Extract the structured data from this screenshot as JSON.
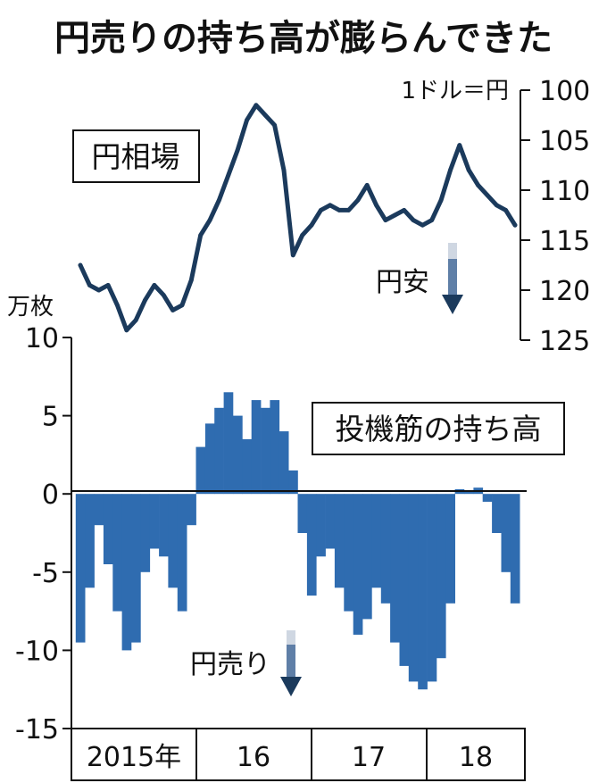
{
  "title": "円売りの持ち高が膨らんできた",
  "chart_data": [
    {
      "type": "line",
      "name": "円相場",
      "label": "円相場",
      "unit_label": "1ドル＝円",
      "y_reversed": true,
      "ylim": [
        100,
        125
      ],
      "yticks": [
        "100",
        "105",
        "110",
        "115",
        "120",
        "125"
      ],
      "annotation": "円安",
      "color": "#1b3a5c",
      "x": [
        "2015-01",
        "2015-02",
        "2015-03",
        "2015-04",
        "2015-05",
        "2015-06",
        "2015-07",
        "2015-08",
        "2015-09",
        "2015-10",
        "2015-11",
        "2015-12",
        "2016-01",
        "2016-02",
        "2016-03",
        "2016-04",
        "2016-05",
        "2016-06",
        "2016-07",
        "2016-08",
        "2016-09",
        "2016-10",
        "2016-11",
        "2016-12",
        "2017-01",
        "2017-02",
        "2017-03",
        "2017-04",
        "2017-05",
        "2017-06",
        "2017-07",
        "2017-08",
        "2017-09",
        "2017-10",
        "2017-11",
        "2017-12",
        "2018-01",
        "2018-02",
        "2018-03",
        "2018-04",
        "2018-05",
        "2018-06",
        "2018-07",
        "2018-08",
        "2018-09",
        "2018-10",
        "2018-11",
        "2018-12"
      ],
      "values": [
        117.5,
        119.5,
        120.0,
        119.5,
        121.5,
        124.0,
        123.0,
        121.0,
        119.5,
        120.5,
        122.0,
        121.5,
        119.0,
        114.5,
        113.0,
        111.0,
        108.5,
        106.0,
        103.0,
        101.5,
        102.5,
        103.5,
        108.0,
        116.5,
        114.5,
        113.5,
        112.0,
        111.5,
        112.0,
        112.0,
        111.0,
        109.5,
        111.5,
        113.0,
        112.5,
        112.0,
        113.0,
        113.5,
        113.0,
        111.0,
        108.0,
        105.5,
        108.0,
        109.5,
        110.5,
        111.5,
        112.0,
        113.5
      ]
    },
    {
      "type": "bar",
      "name": "投機筋の持ち高",
      "label": "投機筋の持ち高",
      "unit_label": "万枚",
      "ylim": [
        -15,
        10
      ],
      "yticks": [
        "10",
        "5",
        "0",
        "-5",
        "-10",
        "-15"
      ],
      "annotation": "円売り",
      "color": "#2f6cb0",
      "x": [
        "2015-01",
        "2015-02",
        "2015-03",
        "2015-04",
        "2015-05",
        "2015-06",
        "2015-07",
        "2015-08",
        "2015-09",
        "2015-10",
        "2015-11",
        "2015-12",
        "2016-01",
        "2016-02",
        "2016-03",
        "2016-04",
        "2016-05",
        "2016-06",
        "2016-07",
        "2016-08",
        "2016-09",
        "2016-10",
        "2016-11",
        "2016-12",
        "2017-01",
        "2017-02",
        "2017-03",
        "2017-04",
        "2017-05",
        "2017-06",
        "2017-07",
        "2017-08",
        "2017-09",
        "2017-10",
        "2017-11",
        "2017-12",
        "2018-01",
        "2018-02",
        "2018-03",
        "2018-04",
        "2018-05",
        "2018-06",
        "2018-07",
        "2018-08",
        "2018-09",
        "2018-10",
        "2018-11",
        "2018-12"
      ],
      "values": [
        -9.5,
        -6.0,
        -2.0,
        -4.5,
        -7.5,
        -10.0,
        -9.5,
        -5.0,
        -3.5,
        -4.0,
        -6.0,
        -7.5,
        -2.0,
        3.0,
        4.5,
        5.5,
        6.5,
        5.0,
        3.5,
        6.0,
        5.5,
        6.0,
        4.0,
        1.5,
        -2.5,
        -6.5,
        -4.0,
        -3.5,
        -6.0,
        -7.5,
        -9.0,
        -8.0,
        -6.0,
        -7.0,
        -9.5,
        -11.0,
        -12.0,
        -12.5,
        -12.0,
        -10.5,
        -7.0,
        0.3,
        0.2,
        0.4,
        -0.5,
        -2.5,
        -5.0,
        -7.0
      ]
    }
  ],
  "x_axis": {
    "labels": [
      "2015年",
      "16",
      "17",
      "18"
    ]
  }
}
